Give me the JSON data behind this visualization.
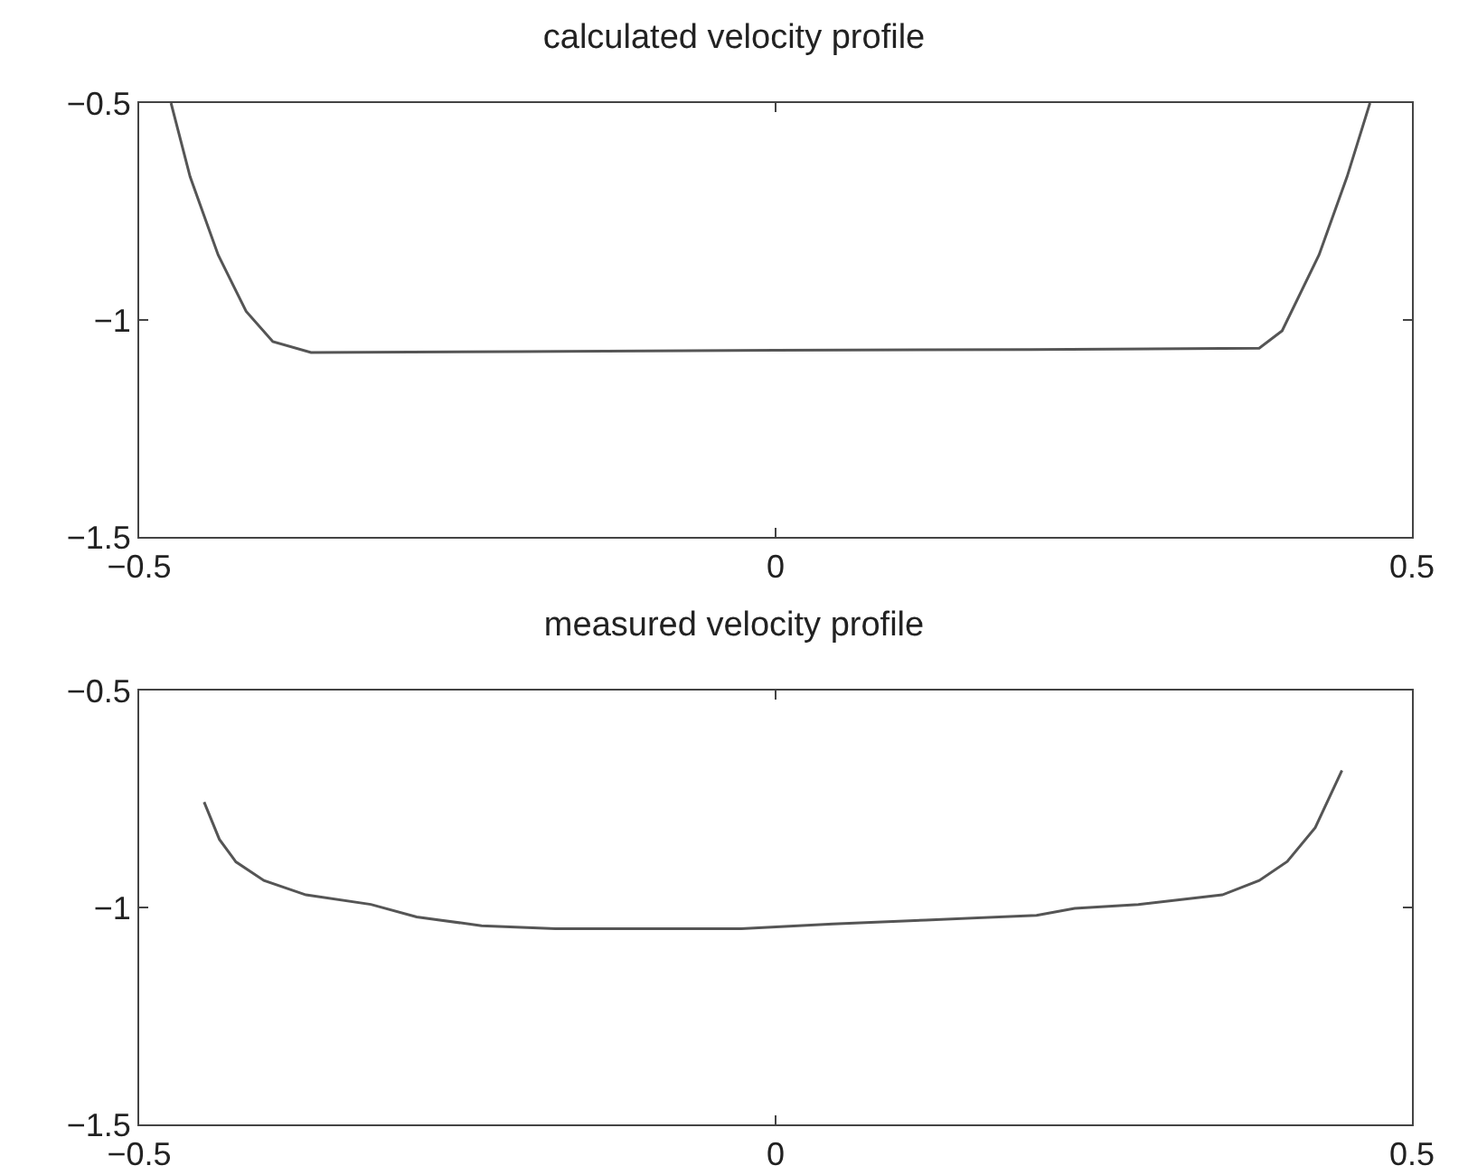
{
  "chart_data": [
    {
      "type": "line",
      "title": "calculated velocity profile",
      "x": [
        -0.475,
        -0.46,
        -0.438,
        -0.416,
        -0.395,
        -0.365,
        -0.2,
        0.0,
        0.2,
        0.38,
        0.398,
        0.427,
        0.449,
        0.467
      ],
      "series": [
        {
          "color": "#555555",
          "values": [
            -0.5,
            -0.67,
            -0.85,
            -0.98,
            -1.05,
            -1.075,
            -1.073,
            -1.07,
            -1.068,
            -1.065,
            -1.025,
            -0.85,
            -0.67,
            -0.5
          ]
        }
      ],
      "xlim": [
        -0.5,
        0.5
      ],
      "xticks": [
        -0.5,
        0,
        0.5
      ],
      "ylim": [
        -1.5,
        -0.5
      ],
      "yticks": [
        -1.5,
        -1,
        -0.5
      ],
      "grid": false
    },
    {
      "type": "line",
      "title": "measured velocity profile",
      "x": [
        -0.449,
        -0.437,
        -0.424,
        -0.402,
        -0.369,
        -0.318,
        -0.282,
        -0.231,
        -0.173,
        -0.1,
        -0.027,
        0.045,
        0.118,
        0.205,
        0.235,
        0.285,
        0.351,
        0.38,
        0.402,
        0.424,
        0.445
      ],
      "series": [
        {
          "color": "#555555",
          "values": [
            -0.757,
            -0.843,
            -0.895,
            -0.938,
            -0.971,
            -0.993,
            -1.022,
            -1.042,
            -1.049,
            -1.049,
            -1.049,
            -1.038,
            -1.029,
            -1.018,
            -1.002,
            -0.993,
            -0.971,
            -0.938,
            -0.894,
            -0.816,
            -0.684
          ]
        }
      ],
      "xlim": [
        -0.5,
        0.5
      ],
      "xticks": [
        -0.5,
        0,
        0.5
      ],
      "ylim": [
        -1.5,
        -0.5
      ],
      "yticks": [
        -1.5,
        -1,
        -0.5
      ],
      "grid": false
    }
  ]
}
